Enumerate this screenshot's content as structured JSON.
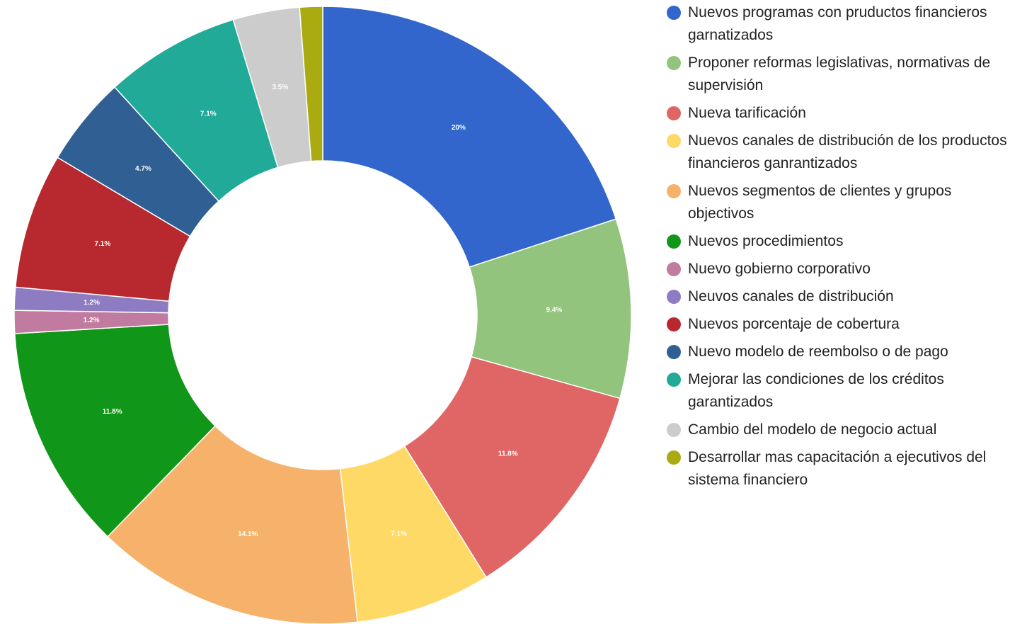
{
  "chart_data": {
    "type": "pie",
    "categories": [
      "Nuevos programas con pruductos financieros garnatizados",
      "Proponer reformas legislativas, normativas de supervisión",
      "Nueva tarificación",
      "Nuevos canales de distribución de los productos financieros ganrantizados",
      "Nuevos segmentos de clientes y grupos objectivos",
      "Nuevos procedimientos",
      "Nuevo gobierno corporativo",
      "Neuvos canales de distribución",
      "Nuevos porcentaje de cobertura",
      "Nuevo modelo de reembolso o de pago",
      "Mejorar las condiciones de los créditos garantizados",
      "Cambio del modelo de negocio actual",
      "Desarrollar mas capacitación a ejecutivos del sistema financiero"
    ],
    "values": [
      20,
      9.4,
      11.8,
      7.1,
      14.1,
      11.8,
      1.2,
      1.2,
      7.1,
      4.7,
      7.1,
      3.5,
      1.2
    ],
    "value_labels": [
      "20%",
      "9.4%",
      "11.8%",
      "7.1%",
      "14.1%",
      "11.8%",
      "1.2%",
      "1.2%",
      "7.1%",
      "4.7%",
      "7.1%",
      "3.5%",
      null
    ],
    "colors": [
      "#3366cc",
      "#93c47d",
      "#e06666",
      "#ffd966",
      "#f6b26b",
      "#109618",
      "#c27ba0",
      "#8e7cc3",
      "#b7292e",
      "#2f5f93",
      "#22aa99",
      "#cccccc",
      "#aaaa11"
    ],
    "donut": true,
    "legend": "right"
  }
}
